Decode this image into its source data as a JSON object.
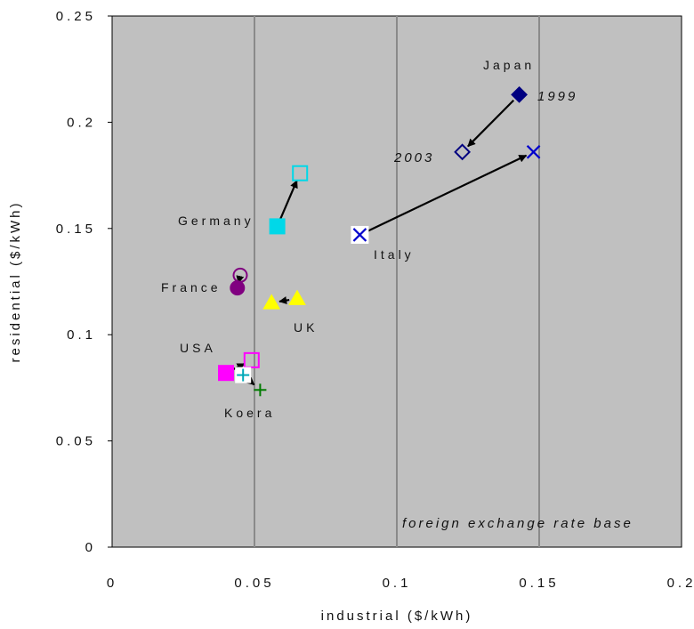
{
  "chart_data": {
    "type": "scatter",
    "title": "",
    "xlabel": "industrial ($/kWh)",
    "ylabel": "residential ($/kWh)",
    "xlim": [
      0,
      0.2
    ],
    "ylim": [
      0,
      0.25
    ],
    "x_ticks": [
      "0",
      "0.05",
      "0.1",
      "0.15",
      "0.2"
    ],
    "y_ticks": [
      "0",
      "0.05",
      "0.1",
      "0.15",
      "0.2",
      "0.25"
    ],
    "grid": "vertical",
    "plot_background": "#c0c0c0",
    "annotation": "foreign exchange rate base",
    "year_labels": {
      "start": "1999",
      "end": "2003"
    },
    "series": [
      {
        "name": "Japan",
        "color": "#000080",
        "marker": "diamond",
        "points": [
          {
            "year": "1999",
            "x": 0.143,
            "y": 0.213
          },
          {
            "year": "2003",
            "x": 0.123,
            "y": 0.186
          }
        ]
      },
      {
        "name": "Italy",
        "color": "#0000cc",
        "marker": "x",
        "points": [
          {
            "year": "1999",
            "x": 0.087,
            "y": 0.147
          },
          {
            "year": "2003",
            "x": 0.148,
            "y": 0.186
          }
        ]
      },
      {
        "name": "Germany",
        "color": "#00d8e8",
        "marker": "square",
        "points": [
          {
            "year": "1999",
            "x": 0.058,
            "y": 0.151
          },
          {
            "year": "2003",
            "x": 0.066,
            "y": 0.176
          }
        ]
      },
      {
        "name": "France",
        "color": "#800080",
        "marker": "circle",
        "points": [
          {
            "year": "1999",
            "x": 0.044,
            "y": 0.122
          },
          {
            "year": "2003",
            "x": 0.045,
            "y": 0.128
          }
        ]
      },
      {
        "name": "UK",
        "color": "#ffff00",
        "marker": "triangle",
        "points": [
          {
            "year": "1999",
            "x": 0.065,
            "y": 0.117
          },
          {
            "year": "2003",
            "x": 0.056,
            "y": 0.115
          }
        ]
      },
      {
        "name": "USA",
        "color": "#ff00ff",
        "marker": "square",
        "points": [
          {
            "year": "1999",
            "x": 0.04,
            "y": 0.082
          },
          {
            "year": "2003",
            "x": 0.049,
            "y": 0.088
          }
        ]
      },
      {
        "name": "Koera",
        "color": "#007a00",
        "marker": "plus",
        "points": [
          {
            "year": "1999",
            "x": 0.046,
            "y": 0.081
          },
          {
            "year": "2003",
            "x": 0.052,
            "y": 0.074
          }
        ]
      }
    ]
  }
}
